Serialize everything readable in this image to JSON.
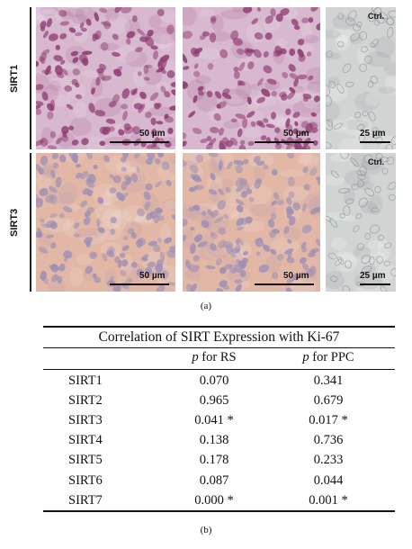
{
  "figure": {
    "rows": [
      "SIRT1",
      "SIRT3"
    ],
    "scales": {
      "sirt1": [
        "50 µm",
        "50 µm",
        "25 µm"
      ],
      "sirt3": [
        "50 µm",
        "50 µm",
        "25 µm"
      ]
    },
    "control_label": "Ctrl.",
    "caption_a": "(a)",
    "colors": {
      "sirt1_tissue": "#d8b8cf",
      "sirt1_nuclei": "#8f3b72",
      "sirt3_tissue": "#e2b7a6",
      "sirt3_nuclei": "#9c8fb5",
      "control_tissue": "#d2d4d4",
      "control_nuclei": "#8f979c"
    }
  },
  "table": {
    "title": "Correlation of SIRT Expression with Ki-67",
    "col_rs_prefix": "p",
    "col_rs_suffix": " for RS",
    "col_ppc_prefix": "p",
    "col_ppc_suffix": " for PPC",
    "rows": [
      {
        "name": "SIRT1",
        "rs": "0.070",
        "ppc": "0.341"
      },
      {
        "name": "SIRT2",
        "rs": "0.965",
        "ppc": "0.679"
      },
      {
        "name": "SIRT3",
        "rs": "0.041 *",
        "ppc": "0.017 *"
      },
      {
        "name": "SIRT4",
        "rs": "0.138",
        "ppc": "0.736"
      },
      {
        "name": "SIRT5",
        "rs": "0.178",
        "ppc": "0.233"
      },
      {
        "name": "SIRT6",
        "rs": "0.087",
        "ppc": "0.044"
      },
      {
        "name": "SIRT7",
        "rs": "0.000 *",
        "ppc": "0.001 *"
      }
    ],
    "caption_b": "(b)"
  }
}
